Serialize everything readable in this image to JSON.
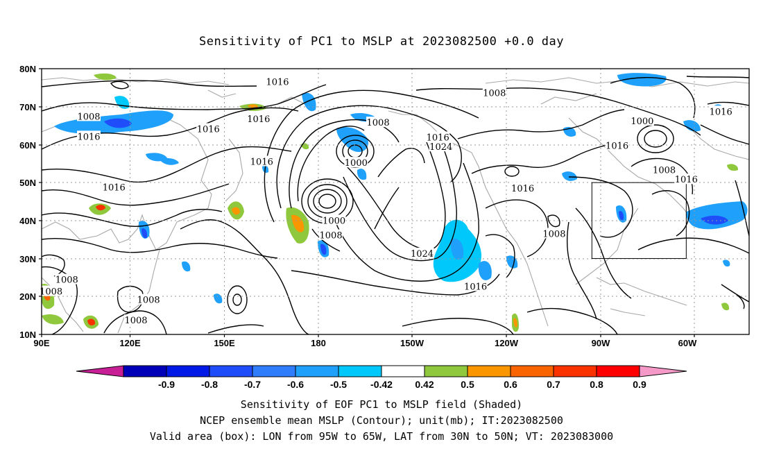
{
  "title": "Sensitivity of PC1 to MSLP at 2023082500 +0.0 day",
  "lat_labels": [
    "80N",
    "70N",
    "60N",
    "50N",
    "40N",
    "30N",
    "20N",
    "10N"
  ],
  "lon_labels": [
    "90E",
    "120E",
    "150E",
    "180",
    "150W",
    "120W",
    "90W",
    "60W"
  ],
  "colorbar": {
    "labels": [
      "-0.9",
      "-0.8",
      "-0.7",
      "-0.6",
      "-0.5",
      "-0.42",
      "0.42",
      "0.5",
      "0.6",
      "0.7",
      "0.8",
      "0.9"
    ],
    "colors": [
      "#0000b8",
      "#0019e6",
      "#1f4dfa",
      "#2f7dfa",
      "#1fa0fa",
      "#00c8fa",
      "#ffffff",
      "#8fc83c",
      "#fa9600",
      "#fa6400",
      "#fa3200",
      "#ff0000"
    ],
    "low_end_color": "#c81e96",
    "high_end_color": "#f59ac8"
  },
  "contour_labels": [
    {
      "text": "1016",
      "lon": 143,
      "lat": 64.2
    },
    {
      "text": "1016",
      "lon": 165,
      "lat": 76.6
    },
    {
      "text": "1016",
      "lon": 159,
      "lat": 66.8
    },
    {
      "text": "1008",
      "lon": 105,
      "lat": 67.5
    },
    {
      "text": "1016",
      "lon": 105,
      "lat": 62.2
    },
    {
      "text": "1016",
      "lon": 113,
      "lat": 48.8
    },
    {
      "text": "1016",
      "lon": 160,
      "lat": 55.6
    },
    {
      "text": "1008",
      "lon": 197,
      "lat": 65.9
    },
    {
      "text": "1000",
      "lon": 190,
      "lat": 55.3
    },
    {
      "text": "1016",
      "lon": 216,
      "lat": 62.0
    },
    {
      "text": "1024",
      "lon": 217,
      "lat": 59.5
    },
    {
      "text": "1000",
      "lon": 183,
      "lat": 40.1
    },
    {
      "text": "1008",
      "lon": 182,
      "lat": 36.2
    },
    {
      "text": "1024",
      "lon": 211,
      "lat": 31.4
    },
    {
      "text": "1008",
      "lon": 234,
      "lat": 73.7
    },
    {
      "text": "1016",
      "lon": 243,
      "lat": 48.6
    },
    {
      "text": "1008",
      "lon": 253,
      "lat": 36.6
    },
    {
      "text": "1016",
      "lon": 228,
      "lat": 22.7
    },
    {
      "text": "1000",
      "lon": 281,
      "lat": 66.3
    },
    {
      "text": "1016",
      "lon": 273,
      "lat": 59.8
    },
    {
      "text": "1008",
      "lon": 288,
      "lat": 53.4
    },
    {
      "text": "1016",
      "lon": 295,
      "lat": 50.9
    },
    {
      "text": "1016",
      "lon": 306,
      "lat": 68.8
    },
    {
      "text": "1008",
      "lon": 98,
      "lat": 24.5
    },
    {
      "text": "1008",
      "lon": 93,
      "lat": 21.4
    },
    {
      "text": "1008",
      "lon": 124,
      "lat": 19.2
    },
    {
      "text": "1008",
      "lon": 120,
      "lat": 13.8
    }
  ],
  "valid_area_box": {
    "lon_min": 265,
    "lon_max": 295,
    "lat_min": 30,
    "lat_max": 50
  },
  "caption_1": "Sensitivity of EOF PC1 to MSLP field (Shaded)",
  "caption_2": "NCEP ensemble mean MSLP (Contour); unit(mb); IT:2023082500",
  "caption_3": "Valid area (box): LON from 95W to 65W, LAT from 30N to 50N; VT: 2023083000"
}
